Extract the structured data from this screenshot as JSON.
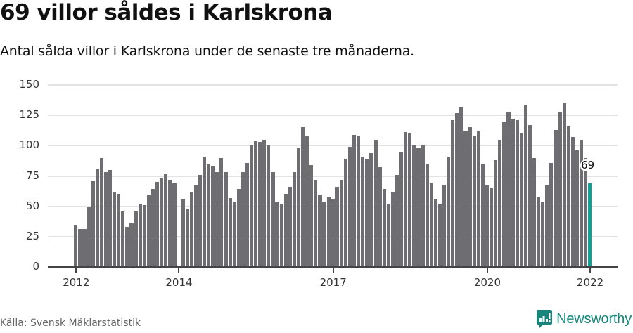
{
  "header": {
    "title": "69 villor såldes i Karlskrona",
    "subtitle": "Antal sålda villor i Karlskrona under de senaste tre månaderna."
  },
  "footer": {
    "source": "Källa: Svensk Mäklarstatistik",
    "brand": "Newsworthy",
    "brand_icon": "bar-chart-speech-bubble-icon"
  },
  "colors": {
    "bar": "#6e6d72",
    "highlight": "#12a096",
    "brand": "#17857c",
    "grid": "#e2e2e2",
    "axis": "#444444"
  },
  "chart_data": {
    "type": "bar",
    "title": "69 villor såldes i Karlskrona",
    "subtitle": "Antal sålda villor i Karlskrona under de senaste tre månaderna.",
    "xlabel": "",
    "ylabel": "",
    "ylim": [
      0,
      150
    ],
    "yticks": [
      0,
      25,
      50,
      75,
      100,
      125,
      150
    ],
    "xtick_labels": [
      "2012",
      "2014",
      "2017",
      "2020",
      "2022"
    ],
    "xtick_months": [
      0,
      24,
      60,
      96,
      120
    ],
    "grid": true,
    "start": "2012-01",
    "frequency": "monthly",
    "highlight_index": 120,
    "annotation": {
      "index": 120,
      "text": "69"
    },
    "values": [
      35,
      31,
      31,
      49,
      71,
      81,
      90,
      78,
      80,
      62,
      60,
      46,
      33,
      36,
      46,
      52,
      51,
      59,
      64,
      70,
      73,
      77,
      72,
      69,
      0,
      56,
      48,
      62,
      67,
      76,
      91,
      85,
      83,
      78,
      90,
      78,
      57,
      54,
      64,
      78,
      86,
      100,
      104,
      103,
      105,
      100,
      78,
      53,
      52,
      60,
      66,
      78,
      98,
      115,
      108,
      84,
      72,
      59,
      54,
      58,
      56,
      66,
      72,
      89,
      99,
      109,
      108,
      91,
      89,
      94,
      105,
      82,
      64,
      52,
      62,
      76,
      95,
      111,
      110,
      100,
      98,
      101,
      85,
      69,
      56,
      52,
      68,
      91,
      121,
      127,
      132,
      112,
      115,
      108,
      112,
      85,
      68,
      65,
      88,
      105,
      120,
      128,
      122,
      121,
      110,
      133,
      117,
      90,
      58,
      53,
      68,
      86,
      113,
      128,
      135,
      116,
      107,
      96,
      105,
      90,
      69
    ]
  }
}
